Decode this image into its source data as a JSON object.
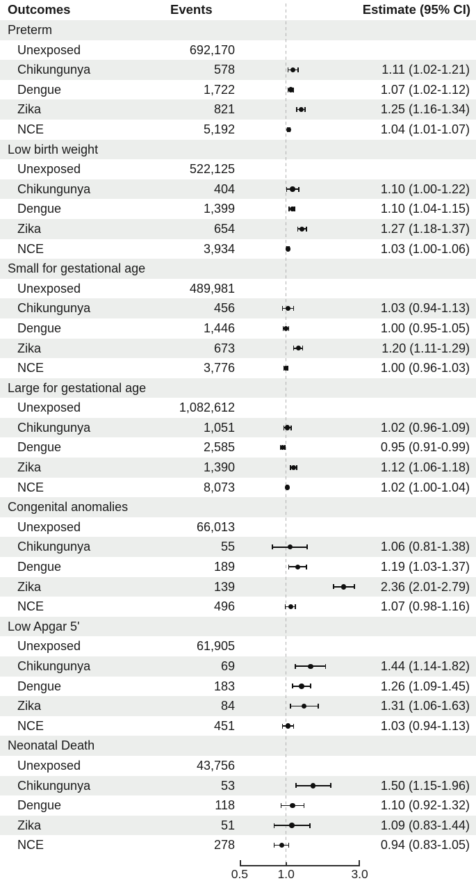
{
  "figure": {
    "columns": {
      "outcomes": "Outcomes",
      "events": "Events",
      "estimate": "Estimate (95% CI)"
    }
  },
  "axis": {
    "scale": "log",
    "ticks": [
      0.5,
      1.0,
      3.0
    ],
    "tick_labels": [
      "0.5",
      "1.0",
      "3.0"
    ],
    "reference_value": 1.0
  },
  "colors": {
    "stripe": "#eceeec",
    "marker": "#0f0f0f",
    "reference_line": "#b0b0b0",
    "axis_line": "#2e2e2e",
    "text": "#1a1a1a"
  },
  "chart_data": {
    "type": "scatter",
    "subtype": "forest_plot",
    "x_scale": "log",
    "x_ticks": [
      0.5,
      1.0,
      3.0
    ],
    "x_range": [
      0.5,
      3.0
    ],
    "reference_line": 1.0,
    "columns": [
      "Outcomes",
      "Events",
      "Estimate (95% CI)"
    ],
    "sections": [
      {
        "outcome": "Preterm",
        "rows": [
          {
            "label": "Unexposed",
            "events": "692,170"
          },
          {
            "label": "Chikungunya",
            "events": "578",
            "estimate": 1.11,
            "ci_low": 1.02,
            "ci_high": 1.21,
            "estimate_text": "1.11 (1.02-1.21)"
          },
          {
            "label": "Dengue",
            "events": "1,722",
            "estimate": 1.07,
            "ci_low": 1.02,
            "ci_high": 1.12,
            "estimate_text": "1.07 (1.02-1.12)"
          },
          {
            "label": "Zika",
            "events": "821",
            "estimate": 1.25,
            "ci_low": 1.16,
            "ci_high": 1.34,
            "estimate_text": "1.25 (1.16-1.34)"
          },
          {
            "label": "NCE",
            "events": "5,192",
            "estimate": 1.04,
            "ci_low": 1.01,
            "ci_high": 1.07,
            "estimate_text": "1.04 (1.01-1.07)"
          }
        ]
      },
      {
        "outcome": "Low birth weight",
        "rows": [
          {
            "label": "Unexposed",
            "events": "522,125"
          },
          {
            "label": "Chikungunya",
            "events": "404",
            "estimate": 1.1,
            "ci_low": 1.0,
            "ci_high": 1.22,
            "estimate_text": "1.10 (1.00-1.22)"
          },
          {
            "label": "Dengue",
            "events": "1,399",
            "estimate": 1.1,
            "ci_low": 1.04,
            "ci_high": 1.15,
            "estimate_text": "1.10 (1.04-1.15)"
          },
          {
            "label": "Zika",
            "events": "654",
            "estimate": 1.27,
            "ci_low": 1.18,
            "ci_high": 1.37,
            "estimate_text": "1.27 (1.18-1.37)"
          },
          {
            "label": "NCE",
            "events": "3,934",
            "estimate": 1.03,
            "ci_low": 1.0,
            "ci_high": 1.06,
            "estimate_text": "1.03 (1.00-1.06)"
          }
        ]
      },
      {
        "outcome": "Small for gestational age",
        "rows": [
          {
            "label": "Unexposed",
            "events": "489,981"
          },
          {
            "label": "Chikungunya",
            "events": "456",
            "estimate": 1.03,
            "ci_low": 0.94,
            "ci_high": 1.13,
            "estimate_text": "1.03 (0.94-1.13)"
          },
          {
            "label": "Dengue",
            "events": "1,446",
            "estimate": 1.0,
            "ci_low": 0.95,
            "ci_high": 1.05,
            "estimate_text": "1.00 (0.95-1.05)"
          },
          {
            "label": "Zika",
            "events": "673",
            "estimate": 1.2,
            "ci_low": 1.11,
            "ci_high": 1.29,
            "estimate_text": "1.20 (1.11-1.29)"
          },
          {
            "label": "NCE",
            "events": "3,776",
            "estimate": 1.0,
            "ci_low": 0.96,
            "ci_high": 1.03,
            "estimate_text": "1.00 (0.96-1.03)"
          }
        ]
      },
      {
        "outcome": "Large for gestational age",
        "rows": [
          {
            "label": "Unexposed",
            "events": "1,082,612"
          },
          {
            "label": "Chikungunya",
            "events": "1,051",
            "estimate": 1.02,
            "ci_low": 0.96,
            "ci_high": 1.09,
            "estimate_text": "1.02 (0.96-1.09)"
          },
          {
            "label": "Dengue",
            "events": "2,585",
            "estimate": 0.95,
            "ci_low": 0.91,
            "ci_high": 0.99,
            "estimate_text": "0.95 (0.91-0.99)"
          },
          {
            "label": "Zika",
            "events": "1,390",
            "estimate": 1.12,
            "ci_low": 1.06,
            "ci_high": 1.18,
            "estimate_text": "1.12 (1.06-1.18)"
          },
          {
            "label": "NCE",
            "events": "8,073",
            "estimate": 1.02,
            "ci_low": 1.0,
            "ci_high": 1.04,
            "estimate_text": "1.02 (1.00-1.04)"
          }
        ]
      },
      {
        "outcome": "Congenital anomalies",
        "rows": [
          {
            "label": "Unexposed",
            "events": "66,013"
          },
          {
            "label": "Chikungunya",
            "events": "55",
            "estimate": 1.06,
            "ci_low": 0.81,
            "ci_high": 1.38,
            "estimate_text": "1.06 (0.81-1.38)"
          },
          {
            "label": "Dengue",
            "events": "189",
            "estimate": 1.19,
            "ci_low": 1.03,
            "ci_high": 1.37,
            "estimate_text": "1.19 (1.03-1.37)"
          },
          {
            "label": "Zika",
            "events": "139",
            "estimate": 2.36,
            "ci_low": 2.01,
            "ci_high": 2.79,
            "estimate_text": "2.36 (2.01-2.79)"
          },
          {
            "label": "NCE",
            "events": "496",
            "estimate": 1.07,
            "ci_low": 0.98,
            "ci_high": 1.16,
            "estimate_text": "1.07 (0.98-1.16)"
          }
        ]
      },
      {
        "outcome": "Low Apgar 5'",
        "rows": [
          {
            "label": "Unexposed",
            "events": "61,905"
          },
          {
            "label": "Chikungunya",
            "events": "69",
            "estimate": 1.44,
            "ci_low": 1.14,
            "ci_high": 1.82,
            "estimate_text": "1.44 (1.14-1.82)"
          },
          {
            "label": "Dengue",
            "events": "183",
            "estimate": 1.26,
            "ci_low": 1.09,
            "ci_high": 1.45,
            "estimate_text": "1.26 (1.09-1.45)"
          },
          {
            "label": "Zika",
            "events": "84",
            "estimate": 1.31,
            "ci_low": 1.06,
            "ci_high": 1.63,
            "estimate_text": "1.31 (1.06-1.63)"
          },
          {
            "label": "NCE",
            "events": "451",
            "estimate": 1.03,
            "ci_low": 0.94,
            "ci_high": 1.13,
            "estimate_text": "1.03 (0.94-1.13)"
          }
        ]
      },
      {
        "outcome": "Neonatal Death",
        "rows": [
          {
            "label": "Unexposed",
            "events": "43,756"
          },
          {
            "label": "Chikungunya",
            "events": "53",
            "estimate": 1.5,
            "ci_low": 1.15,
            "ci_high": 1.96,
            "estimate_text": "1.50 (1.15-1.96)"
          },
          {
            "label": "Dengue",
            "events": "118",
            "estimate": 1.1,
            "ci_low": 0.92,
            "ci_high": 1.32,
            "estimate_text": "1.10 (0.92-1.32)"
          },
          {
            "label": "Zika",
            "events": "51",
            "estimate": 1.09,
            "ci_low": 0.83,
            "ci_high": 1.44,
            "estimate_text": "1.09 (0.83-1.44)"
          },
          {
            "label": "NCE",
            "events": "278",
            "estimate": 0.94,
            "ci_low": 0.83,
            "ci_high": 1.05,
            "estimate_text": "0.94 (0.83-1.05)"
          }
        ]
      }
    ]
  }
}
